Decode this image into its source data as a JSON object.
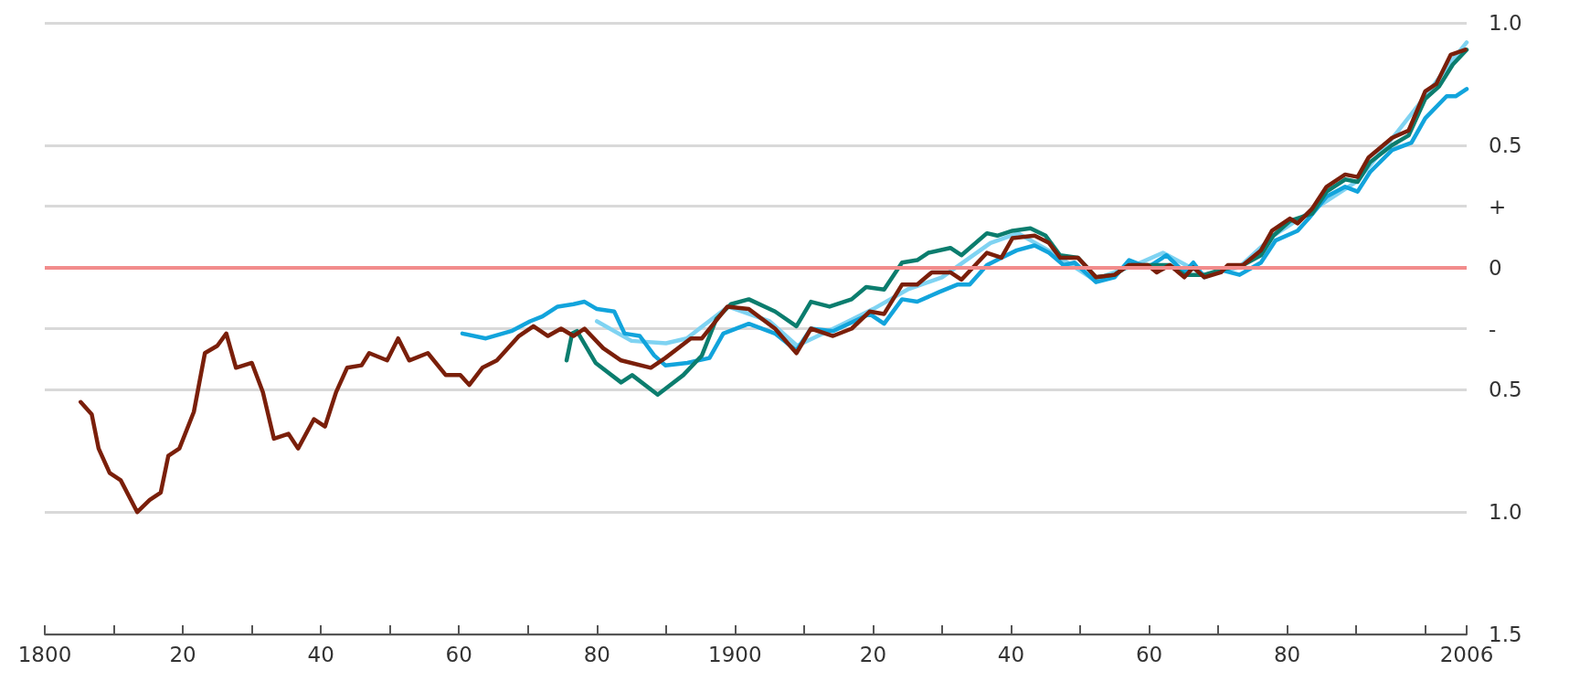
{
  "chart_data": {
    "type": "line",
    "xlim": [
      1800,
      2006
    ],
    "ylim": [
      -1.5,
      1.0
    ],
    "xticks": [
      1800,
      {
        "value": 1810,
        "label": null
      },
      {
        "value": 1820,
        "label": "20"
      },
      {
        "value": 1830,
        "label": null
      },
      {
        "value": 1840,
        "label": "40"
      },
      {
        "value": 1850,
        "label": null
      },
      {
        "value": 1860,
        "label": "60"
      },
      {
        "value": 1870,
        "label": null
      },
      {
        "value": 1880,
        "label": "80"
      },
      {
        "value": 1890,
        "label": null
      },
      1900,
      {
        "value": 1910,
        "label": null
      },
      {
        "value": 1920,
        "label": "20"
      },
      {
        "value": 1930,
        "label": null
      },
      {
        "value": 1940,
        "label": "40"
      },
      {
        "value": 1950,
        "label": null
      },
      {
        "value": 1960,
        "label": "60"
      },
      {
        "value": 1970,
        "label": null
      },
      {
        "value": 1980,
        "label": "80"
      },
      {
        "value": 1990,
        "label": null
      },
      {
        "value": 2000,
        "label": null
      },
      2006
    ],
    "yticks": [
      {
        "value": -1.5,
        "label": "1.5"
      },
      {
        "value": -1.0,
        "label": "1.0"
      },
      {
        "value": -0.5,
        "label": "0.5"
      },
      {
        "value": -0.25,
        "label": "-"
      },
      0,
      {
        "value": 0.25,
        "label": "+"
      },
      0.5,
      {
        "value": 1.0,
        "label": "1.0"
      }
    ],
    "grid": "y",
    "marker": "none",
    "line_style": "solid",
    "ref_lines": [
      {
        "axis": "y",
        "value": 0,
        "label": null,
        "color": "#f28c8c"
      }
    ],
    "series": [
      {
        "color": "#7fd3f2",
        "x": [
          1880,
          1885,
          1890,
          1893,
          1899,
          1905,
          1909,
          1915,
          1920,
          1925,
          1930,
          1937,
          1941,
          1946,
          1952,
          1958,
          1962,
          1968,
          1973,
          1978,
          1984,
          1990,
          1995,
          2000,
          2004,
          2006
        ],
        "values": [
          -0.22,
          -0.3,
          -0.31,
          -0.29,
          -0.16,
          -0.22,
          -0.32,
          -0.24,
          -0.17,
          -0.09,
          -0.04,
          0.1,
          0.14,
          0.06,
          -0.05,
          0.01,
          0.06,
          -0.03,
          0.0,
          0.13,
          0.24,
          0.35,
          0.52,
          0.7,
          0.85,
          0.92
        ]
      },
      {
        "color": "#12a4dc",
        "x": [
          1860.5,
          1863.9,
          1867.6,
          1870.3,
          1872.1,
          1874.3,
          1876.6,
          1878.2,
          1880,
          1882.5,
          1884,
          1886.2,
          1888.3,
          1889.9,
          1893.1,
          1896.3,
          1898.3,
          1902,
          1905.8,
          1908.9,
          1911,
          1914.2,
          1919.5,
          1921.6,
          1924.2,
          1926.4,
          1929.6,
          1932.2,
          1934,
          1936.5,
          1938.6,
          1940.8,
          1943.4,
          1945.5,
          1947.6,
          1949.2,
          1952.3,
          1955,
          1957.1,
          1959.8,
          1962.5,
          1965.1,
          1966.4,
          1968,
          1970.4,
          1973.1,
          1976.2,
          1978.3,
          1981.5,
          1983.1,
          1985.7,
          1988.4,
          1990.2,
          1992,
          1995.2,
          1998,
          2000,
          2003.1,
          2004.4,
          2006
        ],
        "values": [
          -0.27,
          -0.29,
          -0.26,
          -0.22,
          -0.2,
          -0.16,
          -0.15,
          -0.14,
          -0.17,
          -0.18,
          -0.27,
          -0.28,
          -0.36,
          -0.4,
          -0.39,
          -0.37,
          -0.27,
          -0.23,
          -0.27,
          -0.34,
          -0.25,
          -0.26,
          -0.19,
          -0.23,
          -0.13,
          -0.14,
          -0.1,
          -0.07,
          -0.07,
          0.01,
          0.04,
          0.07,
          0.09,
          0.06,
          0.01,
          0.02,
          -0.06,
          -0.04,
          0.03,
          0.0,
          0.05,
          -0.02,
          0.02,
          -0.04,
          -0.01,
          -0.03,
          0.02,
          0.11,
          0.15,
          0.2,
          0.29,
          0.33,
          0.31,
          0.39,
          0.48,
          0.51,
          0.61,
          0.7,
          0.7,
          0.73
        ]
      },
      {
        "color": "#0b7d6e",
        "x": [
          1875.6,
          1876.4,
          1877.1,
          1879.8,
          1883.5,
          1885.1,
          1888.8,
          1892.5,
          1895.2,
          1897.3,
          1899.4,
          1902,
          1905.8,
          1908.9,
          1911,
          1913.7,
          1916.9,
          1919,
          1921.6,
          1924.2,
          1926.4,
          1928,
          1931.2,
          1932.8,
          1936.5,
          1938,
          1940.2,
          1942.8,
          1945,
          1947.1,
          1949.7,
          1952.3,
          1955,
          1957.1,
          1959.8,
          1963,
          1965.1,
          1968,
          1970.4,
          1973.6,
          1976.2,
          1978,
          1980.4,
          1983.6,
          1985.7,
          1988.4,
          1990.2,
          1992,
          1995.2,
          1997.6,
          2000,
          2002,
          2004,
          2006
        ],
        "values": [
          -0.38,
          -0.27,
          -0.26,
          -0.39,
          -0.47,
          -0.44,
          -0.52,
          -0.44,
          -0.36,
          -0.21,
          -0.15,
          -0.13,
          -0.18,
          -0.24,
          -0.14,
          -0.16,
          -0.13,
          -0.08,
          -0.09,
          0.02,
          0.03,
          0.06,
          0.08,
          0.05,
          0.14,
          0.13,
          0.15,
          0.16,
          0.13,
          0.05,
          0.04,
          -0.04,
          -0.03,
          0.01,
          0.01,
          0.01,
          -0.03,
          -0.03,
          -0.01,
          0.01,
          0.05,
          0.13,
          0.19,
          0.22,
          0.31,
          0.36,
          0.35,
          0.43,
          0.5,
          0.54,
          0.69,
          0.74,
          0.83,
          0.89
        ]
      },
      {
        "color": "#7a1f0a",
        "x": [
          1805.2,
          1806.8,
          1807.8,
          1809.4,
          1811,
          1813.4,
          1815.2,
          1816.8,
          1817.9,
          1819.5,
          1821.6,
          1823.2,
          1825,
          1826.3,
          1827.7,
          1830,
          1831.6,
          1833.2,
          1835.3,
          1836.7,
          1839,
          1840.6,
          1842.2,
          1843.8,
          1845.9,
          1847,
          1849.6,
          1851.2,
          1852.8,
          1855.5,
          1858.1,
          1860.2,
          1861.5,
          1863.4,
          1865.5,
          1868.7,
          1870.8,
          1872.9,
          1874.8,
          1876.6,
          1878.2,
          1880.9,
          1883.5,
          1887.8,
          1889.9,
          1893.6,
          1895.2,
          1898.9,
          1902,
          1905.8,
          1908.9,
          1911,
          1914.2,
          1916.9,
          1919.5,
          1921.6,
          1924.2,
          1926.4,
          1928.5,
          1931.2,
          1932.8,
          1936.5,
          1938.6,
          1940.2,
          1943.4,
          1945.5,
          1947.1,
          1949.7,
          1952.3,
          1955,
          1957.1,
          1959.8,
          1961.1,
          1963,
          1965.1,
          1966.4,
          1968,
          1970.4,
          1971.4,
          1973.6,
          1976.2,
          1977.8,
          1980.4,
          1981.5,
          1983.6,
          1985.7,
          1988.4,
          1990.2,
          1991.8,
          1995.2,
          1997.6,
          2000,
          2001.6,
          2003.7,
          2005.8
        ],
        "values": [
          -0.55,
          -0.6,
          -0.74,
          -0.84,
          -0.87,
          -1.0,
          -0.95,
          -0.92,
          -0.77,
          -0.74,
          -0.59,
          -0.35,
          -0.32,
          -0.27,
          -0.41,
          -0.39,
          -0.51,
          -0.7,
          -0.68,
          -0.74,
          -0.62,
          -0.65,
          -0.51,
          -0.41,
          -0.4,
          -0.35,
          -0.38,
          -0.29,
          -0.38,
          -0.35,
          -0.44,
          -0.44,
          -0.48,
          -0.41,
          -0.38,
          -0.28,
          -0.24,
          -0.28,
          -0.25,
          -0.28,
          -0.25,
          -0.33,
          -0.38,
          -0.41,
          -0.37,
          -0.29,
          -0.29,
          -0.16,
          -0.17,
          -0.25,
          -0.35,
          -0.25,
          -0.28,
          -0.25,
          -0.18,
          -0.19,
          -0.07,
          -0.07,
          -0.02,
          -0.02,
          -0.05,
          0.06,
          0.04,
          0.12,
          0.13,
          0.1,
          0.04,
          0.04,
          -0.04,
          -0.03,
          0.01,
          0.01,
          -0.02,
          0.01,
          -0.04,
          0.0,
          -0.04,
          -0.02,
          0.01,
          0.01,
          0.07,
          0.15,
          0.2,
          0.18,
          0.24,
          0.33,
          0.38,
          0.37,
          0.45,
          0.53,
          0.56,
          0.72,
          0.75,
          0.87,
          0.89
        ]
      }
    ]
  }
}
